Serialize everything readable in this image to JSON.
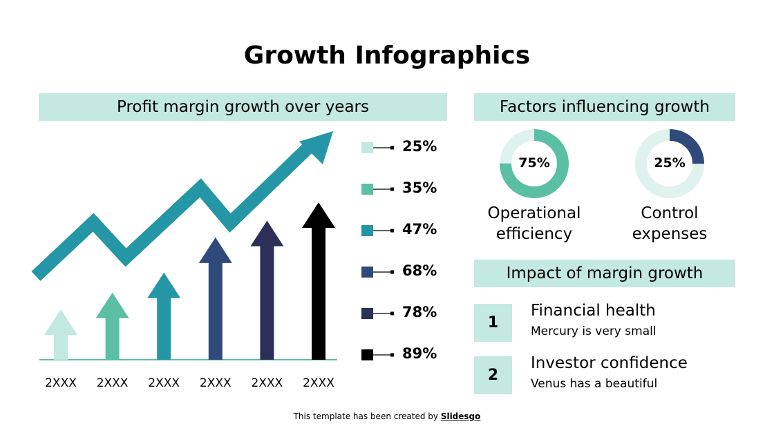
{
  "title": "Growth Infographics",
  "left_header": "Profit margin growth over years",
  "chart_data": {
    "type": "bar",
    "categories": [
      "2XXX",
      "2XXX",
      "2XXX",
      "2XXX",
      "2XXX",
      "2XXX"
    ],
    "values": [
      25,
      35,
      47,
      68,
      78,
      89
    ],
    "value_labels": [
      "25%",
      "35%",
      "47%",
      "68%",
      "78%",
      "89%"
    ],
    "colors": [
      "#c2e8e0",
      "#5bbfa3",
      "#2596a5",
      "#2f4a7a",
      "#2c2f58",
      "#000000"
    ],
    "trend_arrow_color": "#2596a5",
    "legend_placement": "right"
  },
  "factors": {
    "header": "Factors influencing growth",
    "items": [
      {
        "value": 75,
        "label_pct": "75%",
        "label_line1": "Operational",
        "label_line2": "efficiency",
        "color": "#5bbfa3",
        "track": "#dff2ee"
      },
      {
        "value": 25,
        "label_pct": "25%",
        "label_line1": "Control",
        "label_line2": "expenses",
        "color": "#2f4a7a",
        "track": "#dff2ee"
      }
    ]
  },
  "impact": {
    "header": "Impact of margin growth",
    "items": [
      {
        "num": "1",
        "title": "Financial health",
        "text": "Mercury is very small"
      },
      {
        "num": "2",
        "title": "Investor confidence",
        "text": "Venus has a beautiful"
      }
    ]
  },
  "footer": {
    "text": "This template has been created by ",
    "brand": "Slidesgo"
  }
}
